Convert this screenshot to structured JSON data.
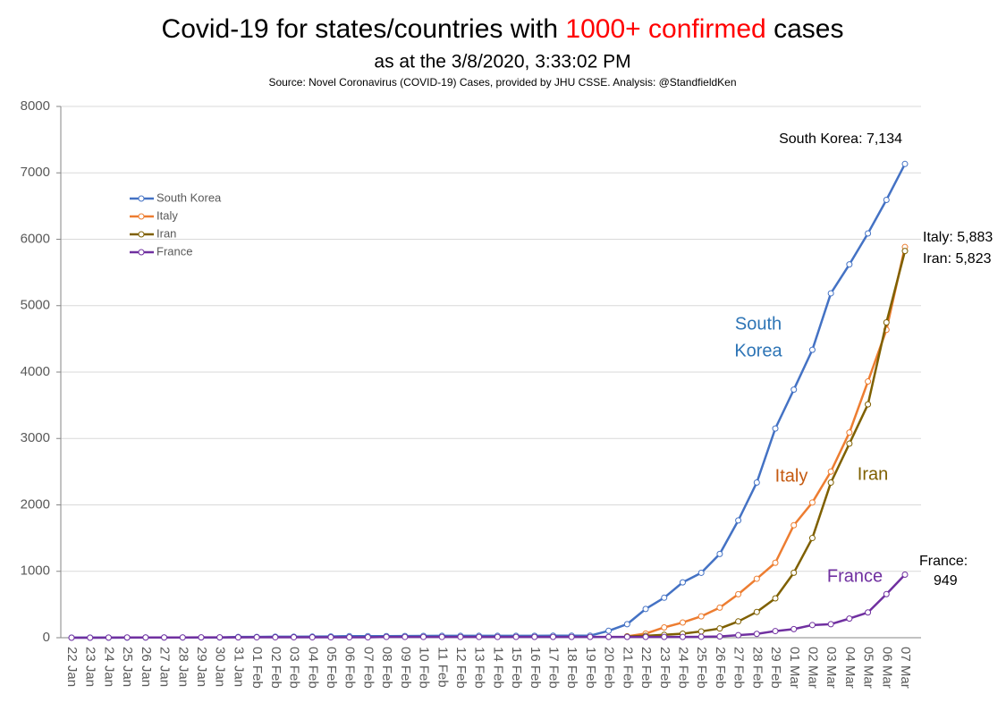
{
  "chart_data": {
    "type": "line",
    "title_parts": [
      "Covid-19 for states/countries with ",
      "1000+ confirmed",
      " cases"
    ],
    "title_colors": [
      "#000000",
      "#ff0000",
      "#000000"
    ],
    "subtitle": "as at the 3/8/2020, 3:33:02 PM",
    "source": "Source: Novel Coronavirus (COVID-19) Cases, provided by JHU CSSE.  Analysis: @StandfieldKen",
    "categories": [
      "22 Jan",
      "23 Jan",
      "24 Jan",
      "25 Jan",
      "26 Jan",
      "27 Jan",
      "28 Jan",
      "29 Jan",
      "30 Jan",
      "31 Jan",
      "01 Feb",
      "02 Feb",
      "03 Feb",
      "04 Feb",
      "05 Feb",
      "06 Feb",
      "07 Feb",
      "08 Feb",
      "09 Feb",
      "10 Feb",
      "11 Feb",
      "12 Feb",
      "13 Feb",
      "14 Feb",
      "15 Feb",
      "16 Feb",
      "17 Feb",
      "18 Feb",
      "19 Feb",
      "20 Feb",
      "21 Feb",
      "22 Feb",
      "23 Feb",
      "24 Feb",
      "25 Feb",
      "26 Feb",
      "27 Feb",
      "28 Feb",
      "29 Feb",
      "01 Mar",
      "02 Mar",
      "03 Mar",
      "04 Mar",
      "05 Mar",
      "06 Mar",
      "07 Mar"
    ],
    "series": [
      {
        "name": "South Korea",
        "color": "#4472c4",
        "values": [
          1,
          1,
          2,
          2,
          3,
          4,
          4,
          4,
          4,
          11,
          12,
          15,
          15,
          16,
          19,
          23,
          24,
          24,
          25,
          27,
          28,
          28,
          28,
          28,
          28,
          29,
          30,
          31,
          31,
          104,
          204,
          433,
          602,
          833,
          977,
          1261,
          1766,
          2337,
          3150,
          3736,
          4335,
          5186,
          5621,
          6088,
          6593,
          7134
        ]
      },
      {
        "name": "Italy",
        "color": "#ed7d31",
        "values": [
          null,
          null,
          null,
          null,
          null,
          null,
          null,
          null,
          null,
          null,
          null,
          null,
          null,
          null,
          null,
          null,
          null,
          null,
          null,
          null,
          null,
          null,
          null,
          null,
          null,
          null,
          null,
          null,
          null,
          null,
          20,
          62,
          155,
          229,
          322,
          453,
          655,
          888,
          1128,
          1694,
          2036,
          2502,
          3089,
          3858,
          4636,
          5883
        ]
      },
      {
        "name": "Iran",
        "color": "#7f6000",
        "values": [
          null,
          null,
          null,
          null,
          null,
          null,
          null,
          null,
          null,
          null,
          null,
          null,
          null,
          null,
          null,
          null,
          null,
          null,
          null,
          null,
          null,
          null,
          null,
          null,
          null,
          null,
          null,
          null,
          null,
          null,
          18,
          28,
          43,
          61,
          95,
          139,
          245,
          388,
          593,
          978,
          1501,
          2336,
          2922,
          3513,
          4747,
          5823
        ]
      },
      {
        "name": "France",
        "color": "#7030a0",
        "values": [
          0,
          0,
          2,
          3,
          3,
          3,
          4,
          5,
          5,
          5,
          6,
          6,
          6,
          6,
          6,
          6,
          6,
          11,
          11,
          11,
          11,
          11,
          11,
          11,
          12,
          12,
          12,
          12,
          12,
          12,
          12,
          12,
          12,
          12,
          14,
          18,
          38,
          57,
          100,
          130,
          191,
          204,
          288,
          380,
          656,
          949
        ]
      }
    ],
    "ylim": [
      0,
      8000
    ],
    "yticks": [
      0,
      1000,
      2000,
      3000,
      4000,
      5000,
      6000,
      7000,
      8000
    ],
    "grid": true,
    "legend": "upper-left",
    "end_labels": [
      "South Korea: 7,134",
      "Italy: 5,883",
      "Iran: 5,823",
      "France:",
      "949"
    ],
    "line_labels": [
      "South",
      "Korea",
      "Italy",
      "Iran",
      "France"
    ],
    "line_label_colors": [
      "#2e75b6",
      "#2e75b6",
      "#c55a11",
      "#7f6000",
      "#7030a0"
    ]
  }
}
